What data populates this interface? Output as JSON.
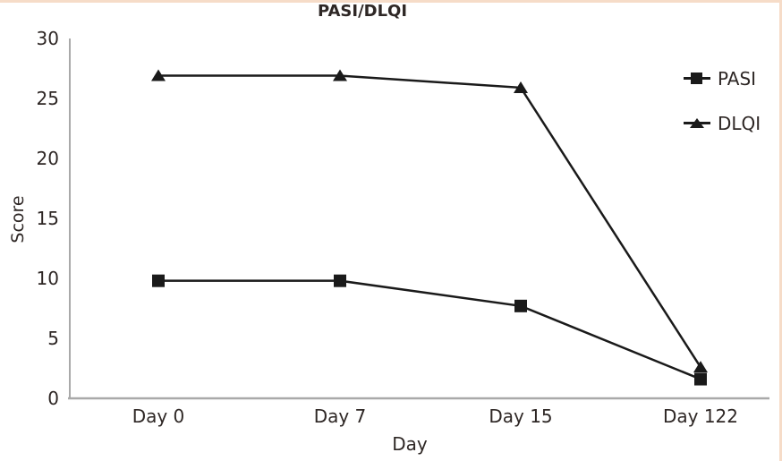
{
  "figure": {
    "title": "PASI/DLQI",
    "border_color": "#f6dcc8"
  },
  "chart_data": {
    "type": "line",
    "title": "PASI/DLQI",
    "xlabel": "Day",
    "ylabel": "Score",
    "categories": [
      "Day 0",
      "Day 7",
      "Day 15",
      "Day 122"
    ],
    "series": [
      {
        "name": "PASI",
        "marker": "square",
        "values": [
          9.8,
          9.8,
          7.7,
          1.6
        ]
      },
      {
        "name": "DLQI",
        "marker": "triangle",
        "values": [
          26.9,
          26.9,
          25.9,
          2.6
        ]
      }
    ],
    "ylim": [
      0,
      30
    ],
    "yticks": [
      0,
      5,
      10,
      15,
      20,
      25,
      30
    ],
    "grid": false,
    "legend_position": "top-right",
    "line_color": "#1a1a1a",
    "axis_color": "#a9a9a9",
    "text_color": "#2e2725",
    "background": "#ffffff"
  }
}
